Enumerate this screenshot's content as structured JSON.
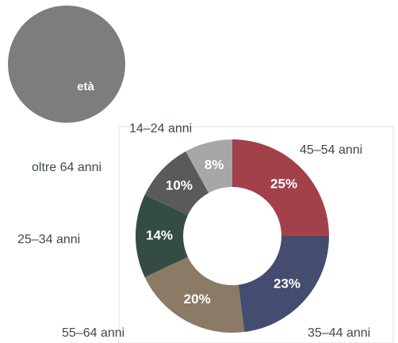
{
  "chart_data": {
    "type": "donut",
    "title": "età",
    "categories": [
      "45–54 anni",
      "35–44 anni",
      "55–64 anni",
      "25–34 anni",
      "oltre 64 anni",
      "14–24 anni"
    ],
    "values": [
      25,
      23,
      20,
      14,
      10,
      8
    ],
    "value_labels": [
      "25%",
      "23%",
      "20%",
      "14%",
      "10%",
      "8%"
    ],
    "colors": [
      "#a2414a",
      "#444c70",
      "#8a7a66",
      "#344c43",
      "#5a5a5c",
      "#a7a7a9"
    ]
  }
}
